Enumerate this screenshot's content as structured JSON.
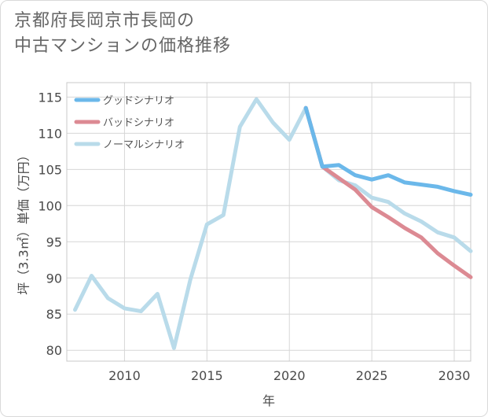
{
  "title_lines": [
    "京都府長岡京市長岡の",
    "中古マンションの価格推移"
  ],
  "chart_data": {
    "type": "line",
    "title": "京都府長岡京市長岡の中古マンションの価格推移",
    "xlabel": "年",
    "ylabel": "坪（3.3㎡）単価（万円）",
    "xlim": [
      2006.5,
      2031
    ],
    "ylim": [
      78.5,
      117
    ],
    "x_ticks": [
      2010,
      2015,
      2020,
      2025,
      2030
    ],
    "y_ticks": [
      80,
      85,
      90,
      95,
      100,
      105,
      110,
      115
    ],
    "grid": true,
    "legend_position": "top-left",
    "series": [
      {
        "name": "グッドシナリオ",
        "color": "#6bb8ea",
        "x": [
          2021,
          2022,
          2023,
          2024,
          2025,
          2026,
          2027,
          2028,
          2029,
          2030,
          2031
        ],
        "values": [
          113.5,
          105.4,
          105.6,
          104.2,
          103.6,
          104.2,
          103.2,
          102.9,
          102.6,
          102.0,
          101.5
        ]
      },
      {
        "name": "バッドシナリオ",
        "color": "#dc8a93",
        "x": [
          2021,
          2022,
          2023,
          2024,
          2025,
          2026,
          2027,
          2028,
          2029,
          2030,
          2031
        ],
        "values": [
          113.5,
          105.4,
          103.8,
          102.2,
          99.8,
          98.4,
          96.9,
          95.6,
          93.4,
          91.7,
          90.1
        ]
      },
      {
        "name": "ノーマルシナリオ",
        "color": "#b9dbea",
        "x": [
          2007,
          2008,
          2009,
          2010,
          2011,
          2012,
          2013,
          2014,
          2015,
          2016,
          2017,
          2018,
          2019,
          2020,
          2021,
          2022,
          2023,
          2024,
          2025,
          2026,
          2027,
          2028,
          2029,
          2030,
          2031
        ],
        "values": [
          85.6,
          90.3,
          87.2,
          85.8,
          85.4,
          87.8,
          80.3,
          89.8,
          97.4,
          98.7,
          110.9,
          114.7,
          111.5,
          109.1,
          113.5,
          105.4,
          103.5,
          102.8,
          101.1,
          100.5,
          98.9,
          97.8,
          96.3,
          95.6,
          93.7
        ]
      }
    ]
  }
}
